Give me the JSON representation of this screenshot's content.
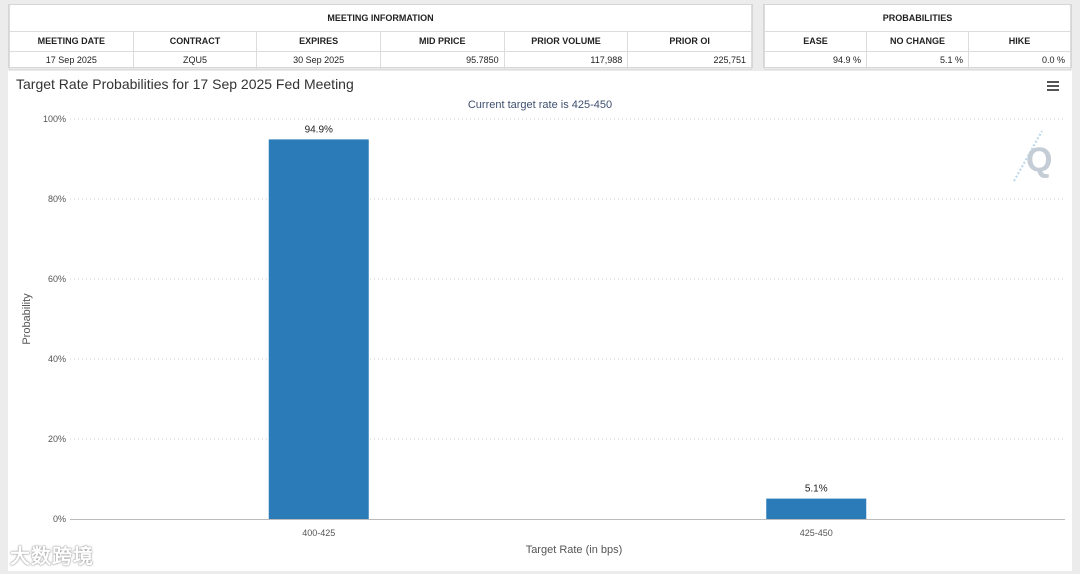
{
  "meeting_info": {
    "header": "MEETING INFORMATION",
    "columns": [
      "MEETING DATE",
      "CONTRACT",
      "EXPIRES",
      "MID PRICE",
      "PRIOR VOLUME",
      "PRIOR OI"
    ],
    "row": [
      "17 Sep 2025",
      "ZQU5",
      "30 Sep 2025",
      "95.7850",
      "117,988",
      "225,751"
    ]
  },
  "probabilities": {
    "header": "PROBABILITIES",
    "columns": [
      "EASE",
      "NO CHANGE",
      "HIKE"
    ],
    "row": [
      "94.9 %",
      "5.1 %",
      "0.0 %"
    ]
  },
  "chart_data": {
    "type": "bar",
    "title": "Target Rate Probabilities for 17 Sep 2025 Fed Meeting",
    "subtitle": "Current target rate is 425-450",
    "xlabel": "Target Rate (in bps)",
    "ylabel": "Probability",
    "categories": [
      "400-425",
      "425-450"
    ],
    "values": [
      94.9,
      5.1
    ],
    "data_labels": [
      "94.9%",
      "5.1%"
    ],
    "ylim": [
      0,
      100
    ],
    "y_ticks": [
      0,
      20,
      40,
      60,
      80,
      100
    ],
    "y_tick_labels": [
      "0%",
      "20%",
      "40%",
      "60%",
      "80%",
      "100%"
    ],
    "grid": true,
    "bar_color": "#2b7bb9"
  },
  "menu_icon": "hamburger-menu-icon",
  "logo_icon": "q-logo-icon",
  "watermark": "大数跨境"
}
